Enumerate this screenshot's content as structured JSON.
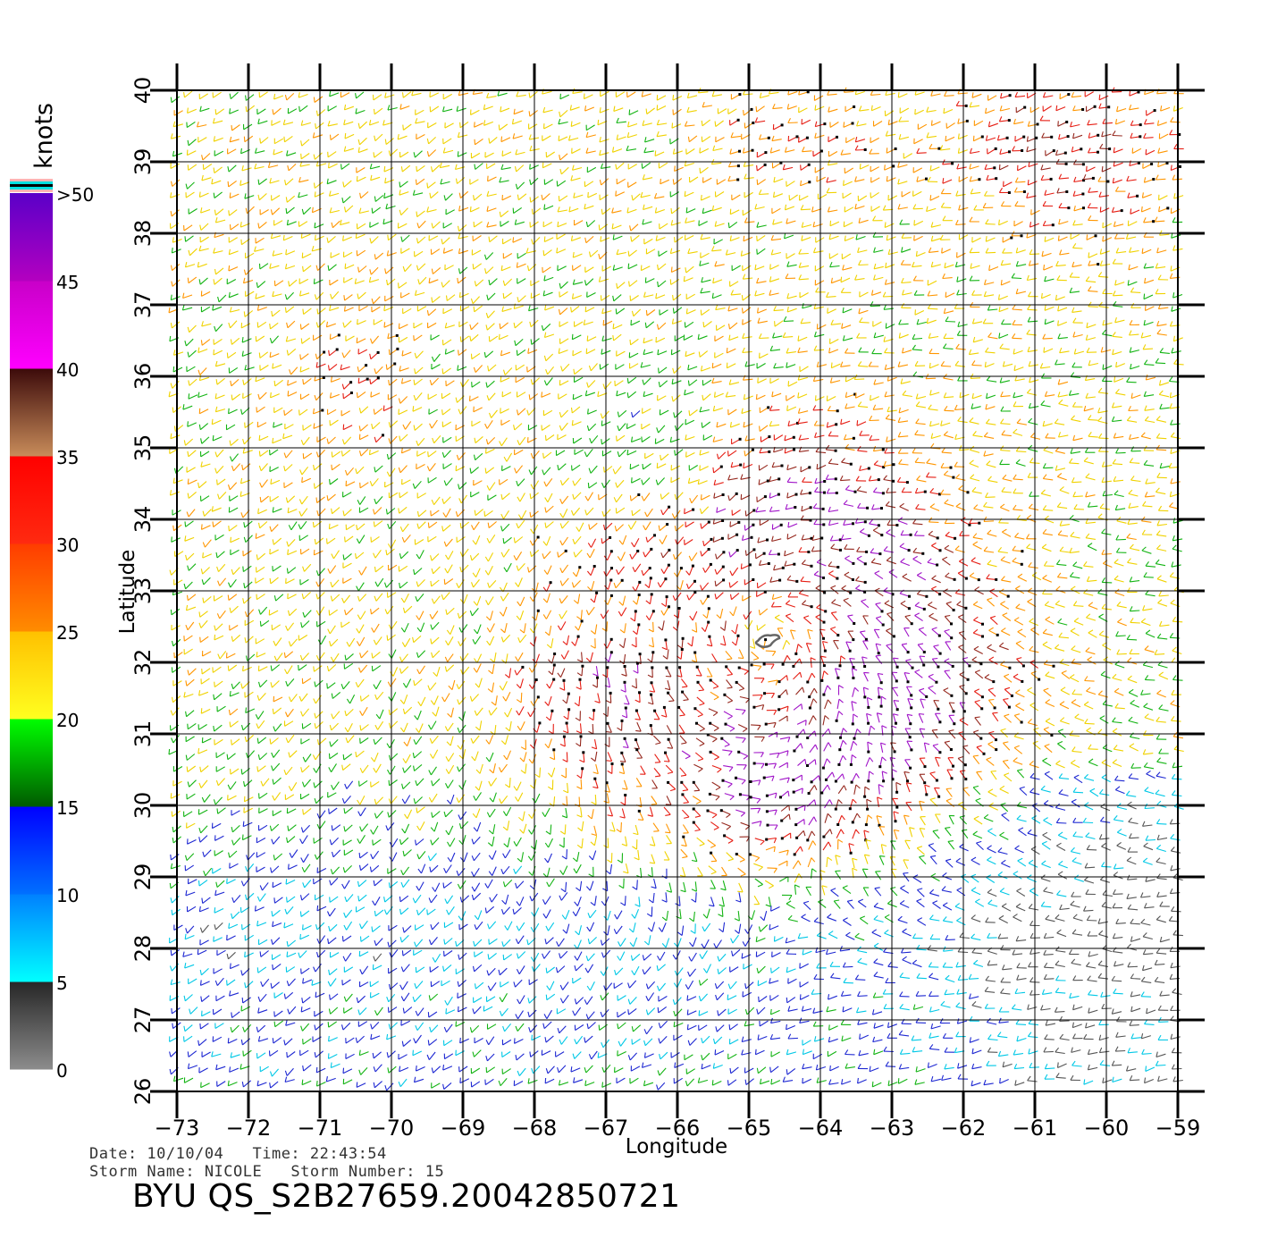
{
  "map": {
    "title": "",
    "xlabel": "Longitude",
    "ylabel": "Latitude",
    "lon_range": [
      -73,
      -59
    ],
    "lat_range": [
      26,
      40
    ],
    "lon_ticks": [
      -73,
      -72,
      -71,
      -70,
      -69,
      -68,
      -67,
      -66,
      -65,
      -64,
      -63,
      -62,
      -61,
      -60,
      -59
    ],
    "lat_ticks": [
      26,
      27,
      28,
      29,
      30,
      31,
      32,
      33,
      34,
      35,
      36,
      37,
      38,
      39,
      40
    ],
    "storm_center": {
      "lon": -64.7,
      "lat": 32.3
    },
    "wind_field_description": "cyclonic wind barbs colored by speed; strongest winds (35-45 knots) east and south of the center, light winds (<15 knots) in the south-east and southern band"
  },
  "colorbar": {
    "unit": "knots",
    "labels": [
      "0",
      "5",
      "10",
      "15",
      "20",
      "25",
      "30",
      "35",
      "40",
      "45",
      ">50"
    ],
    "bands": [
      {
        "from": 0,
        "to": 5,
        "colors": [
          "#8c8c8c",
          "#262626"
        ]
      },
      {
        "from": 5,
        "to": 10,
        "colors": [
          "#00ffff",
          "#0080ff"
        ]
      },
      {
        "from": 10,
        "to": 15,
        "colors": [
          "#0070ff",
          "#0000ff"
        ]
      },
      {
        "from": 15,
        "to": 20,
        "colors": [
          "#005a00",
          "#00ff00"
        ]
      },
      {
        "from": 20,
        "to": 25,
        "colors": [
          "#ffff20",
          "#ffc000"
        ]
      },
      {
        "from": 25,
        "to": 30,
        "colors": [
          "#ff8c00",
          "#ff3c00"
        ]
      },
      {
        "from": 30,
        "to": 35,
        "colors": [
          "#ff2a10",
          "#ff0000"
        ]
      },
      {
        "from": 35,
        "to": 40,
        "colors": [
          "#c88c5a",
          "#3c0a0a"
        ]
      },
      {
        "from": 40,
        "to": 45,
        "colors": [
          "#ff00ff",
          "#c800c8"
        ]
      },
      {
        "from": 45,
        "to": 50,
        "colors": [
          "#b400c0",
          "#5a00c8"
        ]
      }
    ],
    "top_stripe_colors": [
      "#ffb4b4",
      "#00e0e0",
      "#000000",
      "#00e0e0",
      "#ffb4b4"
    ]
  },
  "info": {
    "line1": "Date: 10/10/04   Time: 22:43:54",
    "line2": "Storm Name: NICOLE   Storm Number: 15",
    "product_id": "BYU QS_S2B27659.20042850721"
  }
}
